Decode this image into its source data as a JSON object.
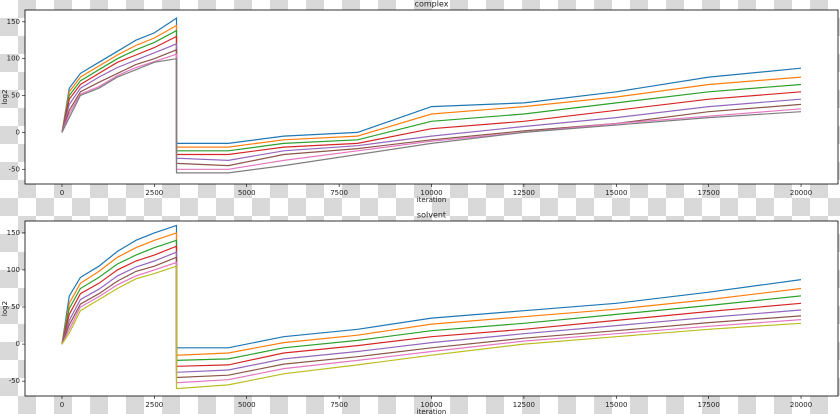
{
  "chart_data": [
    {
      "type": "line",
      "title": "complex",
      "xlabel": "iteration",
      "ylabel": "log2",
      "x": [
        0,
        200,
        500,
        1000,
        1500,
        2000,
        2500,
        3099,
        3100,
        4500,
        6000,
        8000,
        10000,
        12500,
        15000,
        17500,
        20000
      ],
      "xlim": [
        -1000,
        21000
      ],
      "xticks": [
        0,
        2500,
        5000,
        7500,
        10000,
        12500,
        15000,
        17500,
        20000
      ],
      "ylim": [
        -70,
        166
      ],
      "yticks": [
        -50,
        0,
        50,
        100,
        150
      ],
      "series": [
        {
          "color": "#1f77b4",
          "values": [
            0,
            60,
            80,
            95,
            110,
            125,
            135,
            155,
            -15,
            -15,
            -5,
            0,
            35,
            40,
            55,
            75,
            87
          ]
        },
        {
          "color": "#ff7f0e",
          "values": [
            0,
            55,
            75,
            90,
            105,
            118,
            128,
            145,
            -20,
            -20,
            -10,
            -5,
            25,
            35,
            48,
            65,
            75
          ]
        },
        {
          "color": "#2ca02c",
          "values": [
            0,
            50,
            70,
            85,
            100,
            112,
            122,
            138,
            -25,
            -25,
            -15,
            -10,
            15,
            25,
            40,
            55,
            65
          ]
        },
        {
          "color": "#d62728",
          "values": [
            0,
            45,
            65,
            80,
            95,
            105,
            115,
            130,
            -30,
            -30,
            -20,
            -15,
            5,
            15,
            30,
            45,
            55
          ]
        },
        {
          "color": "#9467bd",
          "values": [
            0,
            38,
            60,
            75,
            88,
            98,
            108,
            120,
            -35,
            -38,
            -25,
            -18,
            -5,
            8,
            20,
            35,
            45
          ]
        },
        {
          "color": "#8c564b",
          "values": [
            0,
            30,
            55,
            68,
            80,
            92,
            100,
            112,
            -42,
            -45,
            -30,
            -22,
            -10,
            2,
            12,
            28,
            38
          ]
        },
        {
          "color": "#e377c2",
          "values": [
            0,
            25,
            52,
            62,
            77,
            88,
            96,
            106,
            -50,
            -50,
            -38,
            -25,
            -12,
            0,
            12,
            22,
            32
          ]
        },
        {
          "color": "#7f7f7f",
          "values": [
            0,
            20,
            50,
            60,
            75,
            85,
            95,
            100,
            -55,
            -55,
            -45,
            -30,
            -15,
            0,
            10,
            20,
            28
          ]
        }
      ]
    },
    {
      "type": "line",
      "title": "solvent",
      "xlabel": "iteration",
      "ylabel": "log2",
      "x": [
        0,
        200,
        500,
        1000,
        1500,
        2000,
        2500,
        3099,
        3100,
        4500,
        6000,
        8000,
        10000,
        12500,
        15000,
        17500,
        20000
      ],
      "xlim": [
        -1000,
        21000
      ],
      "xticks": [
        0,
        2500,
        5000,
        7500,
        10000,
        12500,
        15000,
        17500,
        20000
      ],
      "ylim": [
        -70,
        166
      ],
      "yticks": [
        -50,
        0,
        50,
        100,
        150
      ],
      "series": [
        {
          "color": "#1f77b4",
          "values": [
            0,
            65,
            90,
            105,
            125,
            140,
            150,
            160,
            -5,
            -5,
            10,
            20,
            35,
            45,
            55,
            70,
            87
          ]
        },
        {
          "color": "#ff7f0e",
          "values": [
            0,
            55,
            82,
            98,
            117,
            130,
            140,
            150,
            -15,
            -12,
            2,
            12,
            27,
            37,
            47,
            60,
            75
          ]
        },
        {
          "color": "#2ca02c",
          "values": [
            0,
            48,
            75,
            90,
            108,
            120,
            130,
            140,
            -22,
            -20,
            -5,
            5,
            18,
            28,
            40,
            52,
            65
          ]
        },
        {
          "color": "#d62728",
          "values": [
            0,
            40,
            68,
            82,
            100,
            112,
            120,
            132,
            -30,
            -28,
            -12,
            -2,
            10,
            20,
            32,
            44,
            55
          ]
        },
        {
          "color": "#9467bd",
          "values": [
            0,
            32,
            60,
            74,
            92,
            104,
            112,
            124,
            -38,
            -35,
            -20,
            -10,
            2,
            14,
            25,
            36,
            46
          ]
        },
        {
          "color": "#8c564b",
          "values": [
            0,
            26,
            54,
            68,
            85,
            98,
            105,
            117,
            -45,
            -42,
            -27,
            -17,
            -5,
            8,
            18,
            29,
            38
          ]
        },
        {
          "color": "#e377c2",
          "values": [
            0,
            20,
            50,
            64,
            80,
            92,
            100,
            110,
            -52,
            -48,
            -33,
            -22,
            -10,
            4,
            14,
            24,
            33
          ]
        },
        {
          "color": "#bcbd22",
          "values": [
            0,
            15,
            45,
            60,
            75,
            88,
            95,
            105,
            -60,
            -55,
            -40,
            -28,
            -15,
            0,
            10,
            20,
            28
          ]
        }
      ]
    }
  ]
}
